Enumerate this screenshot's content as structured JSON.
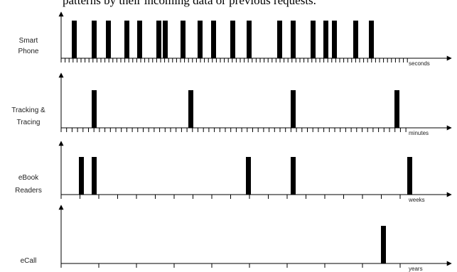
{
  "header": {
    "text": "patterns by their incoming data or previous requests."
  },
  "chart_data": {
    "type": "timeline",
    "rows": [
      {
        "label_lines": [
          "Smart",
          "Phone"
        ],
        "unit": "seconds",
        "event_ticks": [
          3.5,
          6,
          9,
          12,
          15,
          18,
          21,
          24,
          27,
          30,
          33,
          36,
          39,
          42,
          45,
          48,
          51,
          54
        ],
        "events": [
          3,
          7,
          10,
          14,
          17,
          21,
          22,
          24,
          29,
          32,
          37,
          40,
          44,
          46,
          48,
          51,
          56,
          59,
          63,
          65,
          68,
          72
        ]
      },
      {
        "label_lines": [
          "Tracking &",
          "Tracing"
        ],
        "unit": "minutes",
        "event_ticks": [
          6,
          19,
          35,
          52
        ],
        "events": [
          7,
          30,
          57,
          83
        ]
      },
      {
        "label_lines": [
          "eBook",
          "Readers"
        ],
        "unit": "weeks",
        "event_ticks": [
          8,
          15,
          36,
          53
        ],
        "events": [
          4,
          7,
          45,
          57,
          84
        ]
      },
      {
        "label_lines": [
          "eCall"
        ],
        "unit": "years",
        "event_ticks": [
          1
        ],
        "events": [
          0.8
        ]
      }
    ]
  }
}
